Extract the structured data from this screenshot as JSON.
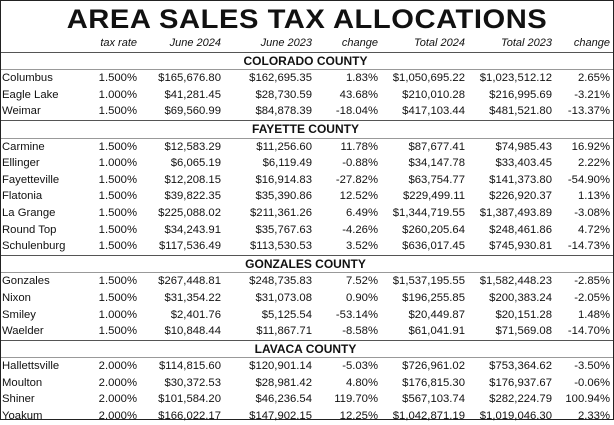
{
  "title": "AREA SALES TAX ALLOCATIONS",
  "columns": [
    "tax rate",
    "June 2024",
    "June 2023",
    "change",
    "Total 2024",
    "Total 2023",
    "change"
  ],
  "sections": [
    {
      "name": "COLORADO COUNTY",
      "rows": [
        [
          "Columbus",
          "1.500%",
          "$165,676.80",
          "$162,695.35",
          "1.83%",
          "$1,050,695.22",
          "$1,023,512.12",
          "2.65%"
        ],
        [
          "Eagle Lake",
          "1.000%",
          "$41,281.45",
          "$28,730.59",
          "43.68%",
          "$210,010.28",
          "$216,995.69",
          "-3.21%"
        ],
        [
          "Weimar",
          "1.500%",
          "$69,560.99",
          "$84,878.39",
          "-18.04%",
          "$417,103.44",
          "$481,521.80",
          "-13.37%"
        ]
      ]
    },
    {
      "name": "FAYETTE COUNTY",
      "rows": [
        [
          "Carmine",
          "1.500%",
          "$12,583.29",
          "$11,256.60",
          "11.78%",
          "$87,677.41",
          "$74,985.43",
          "16.92%"
        ],
        [
          "Ellinger",
          "1.000%",
          "$6,065.19",
          "$6,119.49",
          "-0.88%",
          "$34,147.78",
          "$33,403.45",
          "2.22%"
        ],
        [
          "Fayetteville",
          "1.500%",
          "$12,208.15",
          "$16,914.83",
          "-27.82%",
          "$63,754.77",
          "$141,373.80",
          "-54.90%"
        ],
        [
          "Flatonia",
          "1.500%",
          "$39,822.35",
          "$35,390.86",
          "12.52%",
          "$229,499.11",
          "$226,920.37",
          "1.13%"
        ],
        [
          "La Grange",
          "1.500%",
          "$225,088.02",
          "$211,361.26",
          "6.49%",
          "$1,344,719.55",
          "$1,387,493.89",
          "-3.08%"
        ],
        [
          "Round Top",
          "1.500%",
          "$34,243.91",
          "$35,767.63",
          "-4.26%",
          "$260,205.64",
          "$248,461.86",
          "4.72%"
        ],
        [
          "Schulenburg",
          "1.500%",
          "$117,536.49",
          "$113,530.53",
          "3.52%",
          "$636,017.45",
          "$745,930.81",
          "-14.73%"
        ]
      ]
    },
    {
      "name": "GONZALES COUNTY",
      "rows": [
        [
          "Gonzales",
          "1.500%",
          "$267,448.81",
          "$248,735.83",
          "7.52%",
          "$1,537,195.55",
          "$1,582,448.23",
          "-2.85%"
        ],
        [
          "Nixon",
          "1.500%",
          "$31,354.22",
          "$31,073.08",
          "0.90%",
          "$196,255.85",
          "$200,383.24",
          "-2.05%"
        ],
        [
          "Smiley",
          "1.000%",
          "$2,401.76",
          "$5,125.54",
          "-53.14%",
          "$20,449.87",
          "$20,151.28",
          "1.48%"
        ],
        [
          "Waelder",
          "1.500%",
          "$10,848.44",
          "$11,867.71",
          "-8.58%",
          "$61,041.91",
          "$71,569.08",
          "-14.70%"
        ]
      ]
    },
    {
      "name": "LAVACA COUNTY",
      "rows": [
        [
          "Hallettsville",
          "2.000%",
          "$114,815.60",
          "$120,901.14",
          "-5.03%",
          "$726,961.02",
          "$753,364.62",
          "-3.50%"
        ],
        [
          "Moulton",
          "2.000%",
          "$30,372.53",
          "$28,981.42",
          "4.80%",
          "$176,815.30",
          "$176,937.67",
          "-0.06%"
        ],
        [
          "Shiner",
          "2.000%",
          "$101,584.20",
          "$46,236.54",
          "119.70%",
          "$567,103.74",
          "$282,224.79",
          "100.94%"
        ],
        [
          "Yoakum",
          "2.000%",
          "$166,022.17",
          "$147,902.15",
          "12.25%",
          "$1,042,871.19",
          "$1,019,046.30",
          "2.33%"
        ]
      ]
    }
  ]
}
